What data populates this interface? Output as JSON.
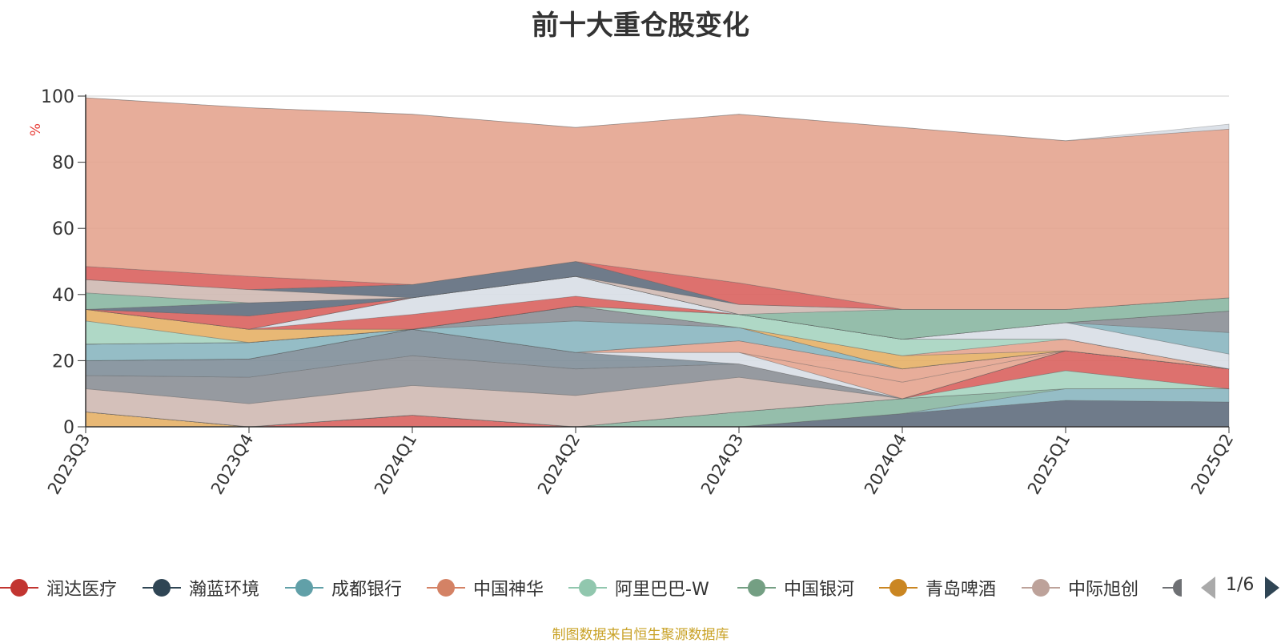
{
  "chart_data": {
    "type": "area",
    "title": "前十大重仓股变化",
    "ylabel": "%",
    "ylim": [
      0,
      100
    ],
    "yticks": [
      0,
      20,
      40,
      60,
      80,
      100
    ],
    "categories": [
      "2023Q3",
      "2023Q4",
      "2024Q1",
      "2024Q2",
      "2024Q3",
      "2024Q4",
      "2025Q1",
      "2025Q2"
    ],
    "stacked": true,
    "grid": true,
    "legend_position": "bottom",
    "series": [
      {
        "name": "",
        "color": "#e6b066",
        "values": [
          4.5,
          0,
          0,
          0,
          0,
          0,
          0,
          0
        ]
      },
      {
        "name": "",
        "color": "#d9625e",
        "values": [
          0,
          0,
          3.5,
          0,
          0,
          0,
          0,
          0
        ]
      },
      {
        "name": "",
        "color": "#5f6d7d",
        "values": [
          0,
          0,
          0,
          0,
          0,
          4,
          8,
          7.5
        ]
      },
      {
        "name": "",
        "color": "#8ab6c0",
        "values": [
          0,
          0,
          0,
          0,
          0,
          0,
          3.5,
          4
        ]
      },
      {
        "name": "",
        "color": "#89b7a2",
        "values": [
          0,
          0,
          0,
          0,
          4.5,
          4.5,
          0,
          0
        ]
      },
      {
        "name": "",
        "color": "#e4a48f",
        "values": [
          0,
          0,
          0,
          0,
          0,
          0,
          0,
          0
        ]
      },
      {
        "name": "",
        "color": "#a6d4c0",
        "values": [
          0,
          0,
          0,
          0,
          0,
          0,
          5.5,
          0
        ]
      },
      {
        "name": "",
        "color": "#d9625e",
        "values": [
          0,
          0,
          0,
          0,
          0,
          0,
          6,
          6
        ]
      },
      {
        "name": "",
        "color": "#cfb9b2",
        "values": [
          7,
          7,
          9,
          9.5,
          10.5,
          0,
          0,
          0
        ]
      },
      {
        "name": "",
        "color": "#8b8f96",
        "values": [
          4,
          8,
          9,
          8,
          4,
          0,
          0,
          0
        ]
      },
      {
        "name": "",
        "color": "#7f8e99",
        "values": [
          4.5,
          5.5,
          8,
          5,
          0,
          0,
          0,
          0
        ]
      },
      {
        "name": "",
        "color": "#d8dee6",
        "values": [
          0,
          0,
          0,
          0,
          3.5,
          0,
          0,
          0
        ]
      },
      {
        "name": "",
        "color": "#e4a48f",
        "values": [
          0,
          0,
          0,
          0,
          0,
          5,
          0,
          0
        ]
      },
      {
        "name": "",
        "color": "#e4a48f",
        "values": [
          0,
          0,
          0,
          0,
          3.5,
          4,
          0,
          0
        ]
      },
      {
        "name": "",
        "color": "#8ab6c0",
        "values": [
          5,
          5,
          0,
          0,
          0,
          0,
          0,
          0
        ]
      },
      {
        "name": "",
        "color": "#8ab6c0",
        "values": [
          0,
          0,
          0,
          9.5,
          4,
          0,
          0,
          0
        ]
      },
      {
        "name": "",
        "color": "#8b8f96",
        "values": [
          0,
          0,
          0,
          4.5,
          0,
          0,
          0,
          0
        ]
      },
      {
        "name": "",
        "color": "#e6b066",
        "values": [
          0,
          0,
          0,
          0,
          0,
          4,
          0,
          0
        ]
      },
      {
        "name": "",
        "color": "#e4a48f",
        "values": [
          0,
          0,
          0,
          0,
          0,
          0,
          3.5,
          0
        ]
      },
      {
        "name": "",
        "color": "#a6d4c0",
        "values": [
          7,
          0,
          0,
          0,
          4,
          5,
          0,
          0
        ]
      },
      {
        "name": "",
        "color": "#e6b066",
        "values": [
          3.5,
          4,
          0,
          0,
          0,
          0,
          0,
          0
        ]
      },
      {
        "name": "",
        "color": "#d9625e",
        "values": [
          0,
          0,
          4.5,
          3,
          0,
          0,
          0,
          0
        ]
      },
      {
        "name": "",
        "color": "#d8dee6",
        "values": [
          0,
          0,
          5,
          6,
          0,
          0,
          5,
          4.5
        ]
      },
      {
        "name": "",
        "color": "#8ab6c0",
        "values": [
          0,
          0,
          0,
          0,
          0,
          0,
          0,
          6.5
        ]
      },
      {
        "name": "",
        "color": "#8b8f96",
        "values": [
          0,
          0,
          0,
          0,
          0,
          0,
          0,
          6.5
        ]
      },
      {
        "name": "",
        "color": "#d9625e",
        "values": [
          0,
          4,
          0,
          0,
          0,
          0,
          0,
          0
        ]
      },
      {
        "name": "",
        "color": "#5f6d7d",
        "values": [
          0,
          4,
          0,
          0,
          0,
          0,
          0,
          0
        ]
      },
      {
        "name": "",
        "color": "#89b7a2",
        "values": [
          5,
          0,
          0,
          0,
          0,
          9,
          4,
          4
        ]
      },
      {
        "name": "",
        "color": "#cfb9b2",
        "values": [
          4,
          4,
          0,
          0,
          3,
          0,
          0,
          0
        ]
      },
      {
        "name": "",
        "color": "#5f6d7d",
        "values": [
          0,
          0,
          4,
          4.5,
          0,
          0,
          0,
          0
        ]
      },
      {
        "name": "",
        "color": "#d9625e",
        "values": [
          4,
          4,
          0,
          0,
          6.5,
          0,
          0,
          0
        ]
      },
      {
        "name": "",
        "color": "#e4a48f",
        "values": [
          51,
          51,
          51.5,
          40.5,
          51,
          55,
          51,
          51
        ]
      },
      {
        "name": "",
        "color": "#d8dee6",
        "values": [
          0,
          0,
          0,
          0,
          0,
          0,
          0,
          1.5
        ]
      }
    ],
    "legend": [
      {
        "name": "润达医疗",
        "color": "#c23531"
      },
      {
        "name": "瀚蓝环境",
        "color": "#2f4554"
      },
      {
        "name": "成都银行",
        "color": "#61a0a8"
      },
      {
        "name": "中国神华",
        "color": "#d48265"
      },
      {
        "name": "阿里巴巴-W",
        "color": "#91c7ae"
      },
      {
        "name": "中国银河",
        "color": "#749f83"
      },
      {
        "name": "青岛啤酒",
        "color": "#ca8622"
      },
      {
        "name": "中际旭创",
        "color": "#bda29a"
      },
      {
        "name": "",
        "color": "#6e7074"
      }
    ],
    "legend_page": "1/6",
    "source_note": "制图数据来自恒生聚源数据库"
  }
}
